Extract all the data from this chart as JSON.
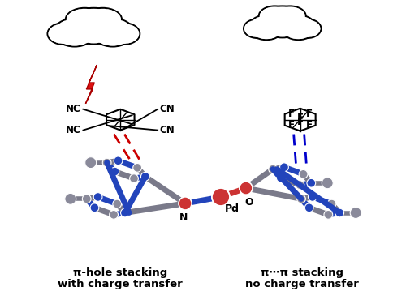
{
  "fig_width": 5.0,
  "fig_height": 3.59,
  "dpi": 100,
  "background_color": "#ffffff",
  "left_label_line1": "π-hole stacking",
  "left_label_line2": "with charge transfer",
  "right_label_line1": "π⋯π stacking",
  "right_label_line2": "no charge transfer",
  "label_fontsize": 9.5,
  "label_fontweight": "bold",
  "red_color": "#cc0000",
  "blue_color": "#0000cc",
  "bond_blue": "#2244bb",
  "bond_red": "#cc3333",
  "bond_grey": "#7a7a8a",
  "ball_grey": "#8a8a9a",
  "ball_blue": "#2244bb",
  "ball_red": "#cc3333"
}
